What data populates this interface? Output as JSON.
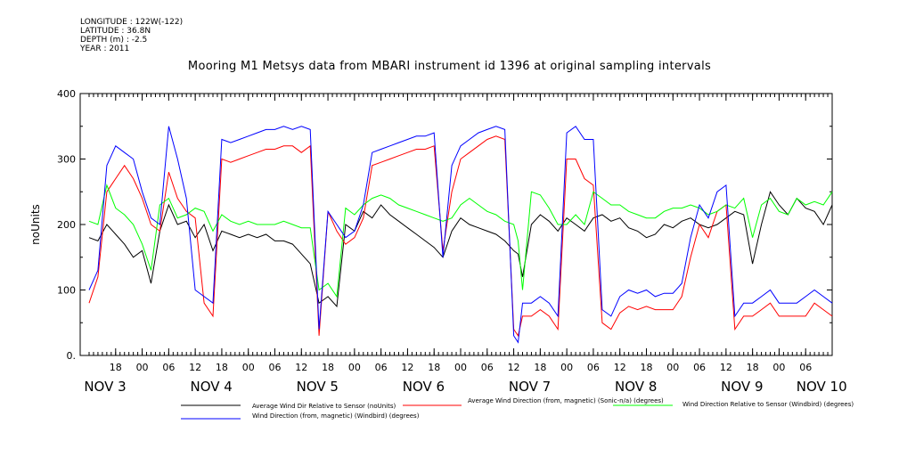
{
  "metadata": {
    "lines": [
      "LONGITUDE : 122W(-122)",
      "LATITUDE : 36.8N",
      "DEPTH (m) : -2.5",
      "YEAR : 2011"
    ]
  },
  "colors": {
    "series1": "#000000",
    "series2": "#ff0000",
    "series3": "#00ff00",
    "series4": "#0000ff"
  },
  "chart_data": {
    "type": "line",
    "title": "Mooring M1 Metsys data from MBARI instrument id 1396 at original sampling intervals",
    "ylabel": "noUnits",
    "xlabel": "",
    "ylim": [
      0,
      400
    ],
    "yticks": [
      "0.",
      "100",
      "200",
      "300",
      "400"
    ],
    "xlim": [
      0,
      168
    ],
    "hour_ticks": [
      {
        "x": 6,
        "label": "18"
      },
      {
        "x": 12,
        "label": "00"
      },
      {
        "x": 18,
        "label": "06"
      },
      {
        "x": 24,
        "label": "12"
      },
      {
        "x": 30,
        "label": "18"
      },
      {
        "x": 36,
        "label": "00"
      },
      {
        "x": 42,
        "label": "06"
      },
      {
        "x": 48,
        "label": "12"
      },
      {
        "x": 54,
        "label": "18"
      },
      {
        "x": 60,
        "label": "00"
      },
      {
        "x": 66,
        "label": "06"
      },
      {
        "x": 72,
        "label": "12"
      },
      {
        "x": 78,
        "label": "18"
      },
      {
        "x": 84,
        "label": "00"
      },
      {
        "x": 90,
        "label": "06"
      },
      {
        "x": 96,
        "label": "12"
      },
      {
        "x": 102,
        "label": "18"
      },
      {
        "x": 108,
        "label": "00"
      },
      {
        "x": 114,
        "label": "06"
      },
      {
        "x": 120,
        "label": "12"
      },
      {
        "x": 126,
        "label": "18"
      },
      {
        "x": 132,
        "label": "00"
      },
      {
        "x": 138,
        "label": "06"
      },
      {
        "x": 144,
        "label": "12"
      },
      {
        "x": 150,
        "label": "18"
      },
      {
        "x": 156,
        "label": "00"
      },
      {
        "x": 162,
        "label": "06"
      }
    ],
    "day_labels": [
      {
        "x": 0,
        "label": "NOV  3"
      },
      {
        "x": 24,
        "label": "NOV  4"
      },
      {
        "x": 48,
        "label": "NOV  5"
      },
      {
        "x": 72,
        "label": "NOV  6"
      },
      {
        "x": 96,
        "label": "NOV  7"
      },
      {
        "x": 120,
        "label": "NOV  8"
      },
      {
        "x": 144,
        "label": "NOV  9"
      },
      {
        "x": 162,
        "label": "NOV 10"
      }
    ],
    "series": [
      {
        "name": "Average Wind Dir Relative to Sensor (noUnits)",
        "color_key": "series1",
        "x": [
          0,
          2,
          4,
          6,
          8,
          10,
          12,
          14,
          16,
          18,
          20,
          22,
          24,
          26,
          28,
          30,
          32,
          34,
          36,
          38,
          40,
          42,
          44,
          46,
          48,
          50,
          52,
          54,
          56,
          58,
          60,
          62,
          64,
          66,
          68,
          70,
          72,
          74,
          76,
          78,
          80,
          82,
          84,
          86,
          88,
          90,
          92,
          94,
          96,
          97,
          98,
          100,
          102,
          104,
          106,
          108,
          110,
          112,
          114,
          116,
          118,
          120,
          122,
          124,
          126,
          128,
          130,
          132,
          134,
          136,
          138,
          140,
          142,
          144,
          146,
          148,
          150,
          152,
          154,
          156,
          158,
          160,
          162,
          164,
          166,
          168
        ],
        "y": [
          180,
          175,
          200,
          185,
          170,
          150,
          160,
          110,
          190,
          230,
          200,
          205,
          180,
          200,
          160,
          190,
          185,
          180,
          185,
          180,
          185,
          175,
          175,
          170,
          155,
          140,
          80,
          90,
          75,
          200,
          190,
          220,
          210,
          230,
          215,
          205,
          195,
          185,
          175,
          165,
          150,
          190,
          210,
          200,
          195,
          190,
          185,
          175,
          160,
          155,
          120,
          200,
          215,
          205,
          190,
          210,
          200,
          190,
          210,
          215,
          205,
          210,
          195,
          190,
          180,
          185,
          200,
          195,
          205,
          210,
          200,
          195,
          200,
          210,
          220,
          215,
          140,
          200,
          250,
          230,
          215,
          240,
          225,
          220,
          200,
          230
        ]
      },
      {
        "name": "Average Wind Direction (from, magnetic) (Sonic-n/a) (degrees)",
        "color_key": "series2",
        "x": [
          0,
          2,
          4,
          6,
          8,
          10,
          12,
          14,
          16,
          18,
          20,
          22,
          24,
          26,
          28,
          30,
          32,
          34,
          36,
          38,
          40,
          42,
          44,
          46,
          48,
          50,
          52,
          54,
          56,
          58,
          60,
          62,
          64,
          66,
          68,
          70,
          72,
          74,
          76,
          78,
          80,
          82,
          84,
          86,
          88,
          90,
          92,
          94,
          96,
          97,
          98,
          100,
          102,
          104,
          106,
          108,
          110,
          112,
          114,
          116,
          118,
          120,
          122,
          124,
          126,
          128,
          130,
          132,
          134,
          136,
          138,
          140,
          142,
          144,
          146,
          148,
          150,
          152,
          154,
          156,
          158,
          160,
          162,
          164,
          166,
          168
        ],
        "y": [
          80,
          120,
          250,
          270,
          290,
          270,
          240,
          200,
          190,
          280,
          240,
          220,
          210,
          80,
          60,
          300,
          295,
          300,
          305,
          310,
          315,
          315,
          320,
          320,
          310,
          320,
          30,
          220,
          190,
          170,
          180,
          210,
          290,
          295,
          300,
          305,
          310,
          315,
          315,
          320,
          160,
          250,
          300,
          310,
          320,
          330,
          335,
          330,
          40,
          30,
          60,
          60,
          70,
          60,
          40,
          300,
          300,
          270,
          260,
          50,
          40,
          65,
          75,
          70,
          75,
          70,
          70,
          70,
          90,
          150,
          200,
          180,
          220,
          230,
          40,
          60,
          60,
          70,
          80,
          60,
          60,
          60,
          60,
          80,
          70,
          60
        ]
      },
      {
        "name": "Wind Direction Relative to Sensor (Windbird) (degrees)",
        "color_key": "series3",
        "x": [
          0,
          2,
          4,
          6,
          8,
          10,
          12,
          14,
          16,
          18,
          20,
          22,
          24,
          26,
          28,
          30,
          32,
          34,
          36,
          38,
          40,
          42,
          44,
          46,
          48,
          50,
          52,
          54,
          56,
          58,
          60,
          62,
          64,
          66,
          68,
          70,
          72,
          74,
          76,
          78,
          80,
          82,
          84,
          86,
          88,
          90,
          92,
          94,
          96,
          97,
          98,
          100,
          102,
          104,
          106,
          108,
          110,
          112,
          114,
          116,
          118,
          120,
          122,
          124,
          126,
          128,
          130,
          132,
          134,
          136,
          138,
          140,
          142,
          144,
          146,
          148,
          150,
          152,
          154,
          156,
          158,
          160,
          162,
          164,
          166,
          168
        ],
        "y": [
          205,
          200,
          260,
          225,
          215,
          200,
          170,
          130,
          230,
          240,
          210,
          215,
          225,
          220,
          190,
          215,
          205,
          200,
          205,
          200,
          200,
          200,
          205,
          200,
          195,
          195,
          100,
          110,
          90,
          225,
          215,
          230,
          240,
          245,
          240,
          230,
          225,
          220,
          215,
          210,
          205,
          210,
          230,
          240,
          230,
          220,
          215,
          205,
          200,
          175,
          100,
          250,
          245,
          225,
          200,
          200,
          215,
          200,
          250,
          240,
          230,
          230,
          220,
          215,
          210,
          210,
          220,
          225,
          225,
          230,
          225,
          215,
          220,
          230,
          225,
          240,
          180,
          230,
          240,
          220,
          215,
          240,
          230,
          235,
          230,
          250
        ]
      },
      {
        "name": "Wind Direction (from, magnetic) (Windbird) (degrees)",
        "color_key": "series4",
        "x": [
          0,
          2,
          4,
          6,
          8,
          10,
          12,
          14,
          16,
          18,
          20,
          22,
          24,
          26,
          28,
          30,
          32,
          34,
          36,
          38,
          40,
          42,
          44,
          46,
          48,
          50,
          52,
          54,
          56,
          58,
          60,
          62,
          64,
          66,
          68,
          70,
          72,
          74,
          76,
          78,
          80,
          82,
          84,
          86,
          88,
          90,
          92,
          94,
          96,
          97,
          98,
          100,
          102,
          104,
          106,
          108,
          110,
          112,
          114,
          116,
          118,
          120,
          122,
          124,
          126,
          128,
          130,
          132,
          134,
          136,
          138,
          140,
          142,
          144,
          146,
          148,
          150,
          152,
          154,
          156,
          158,
          160,
          162,
          164,
          166,
          168
        ],
        "y": [
          100,
          130,
          290,
          320,
          310,
          300,
          250,
          210,
          200,
          350,
          300,
          240,
          100,
          90,
          80,
          330,
          325,
          330,
          335,
          340,
          345,
          345,
          350,
          345,
          350,
          345,
          40,
          220,
          200,
          180,
          190,
          230,
          310,
          315,
          320,
          325,
          330,
          335,
          335,
          340,
          150,
          290,
          320,
          330,
          340,
          345,
          350,
          345,
          30,
          20,
          80,
          80,
          90,
          80,
          60,
          340,
          350,
          330,
          330,
          70,
          60,
          90,
          100,
          95,
          100,
          90,
          95,
          95,
          110,
          180,
          230,
          210,
          250,
          260,
          60,
          80,
          80,
          90,
          100,
          80,
          80,
          80,
          90,
          100,
          90,
          80
        ]
      }
    ]
  }
}
